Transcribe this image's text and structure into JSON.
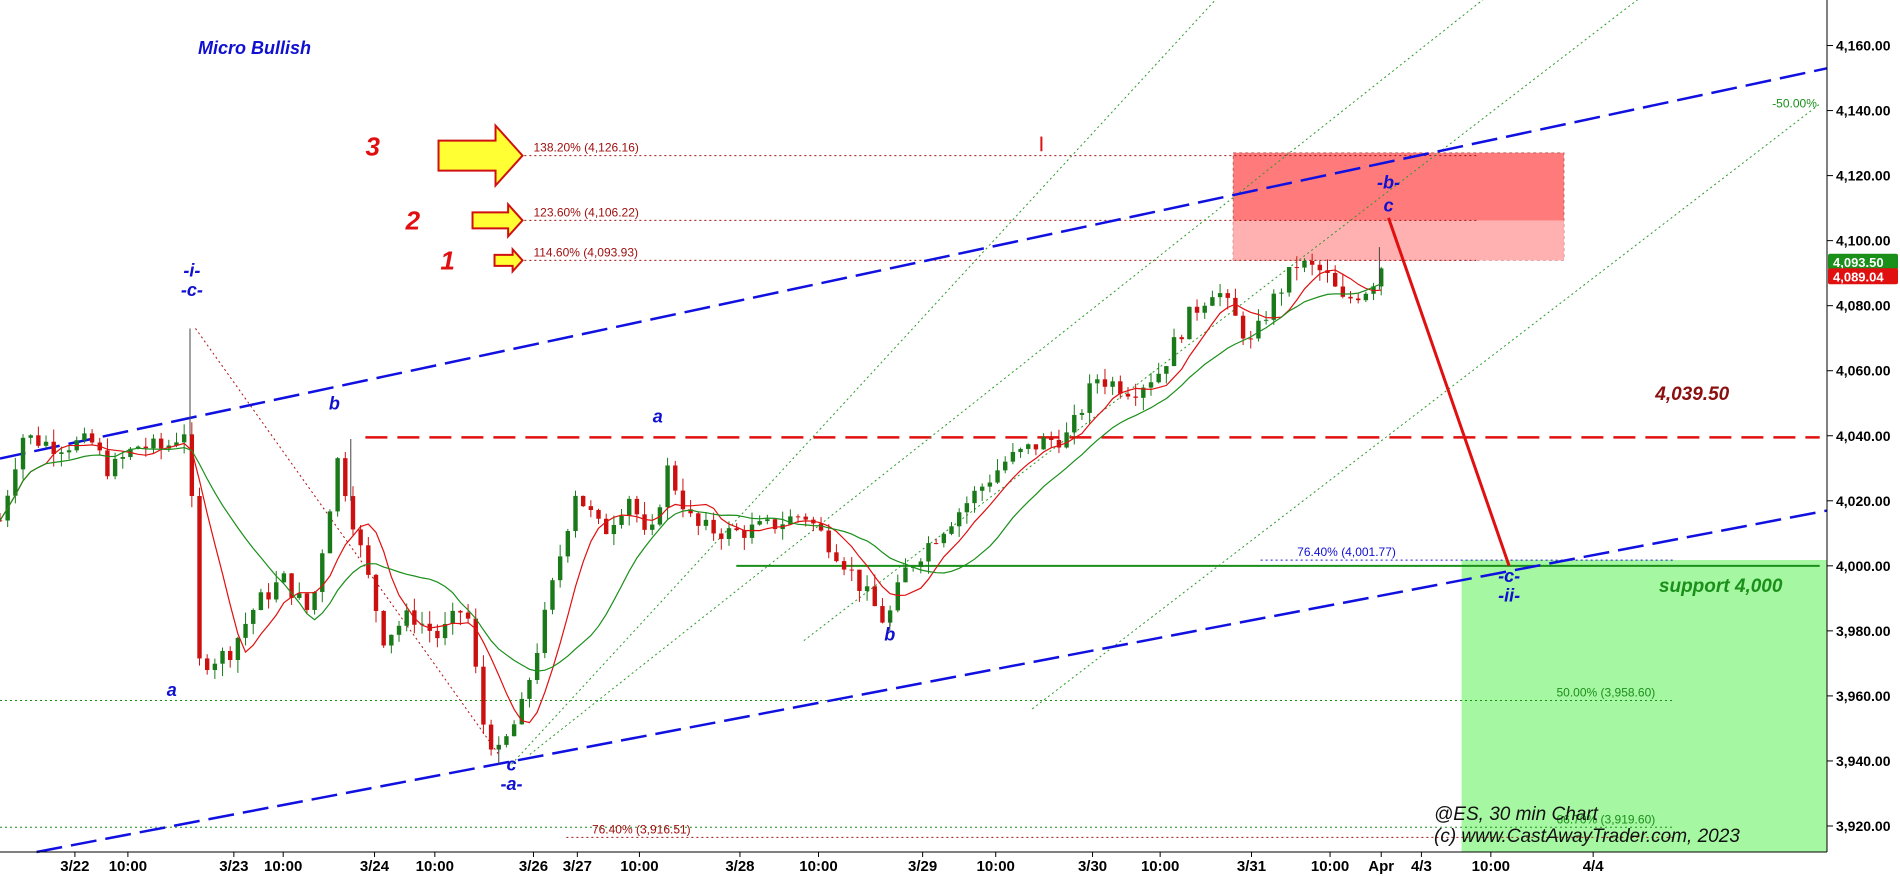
{
  "chart_data": {
    "type": "candlestick",
    "title": "Micro Bullish",
    "watermark": [
      "@ES, 30 min Chart",
      "(c) www.CastAwayTrader.com, 2023"
    ],
    "y_axis": {
      "ylim": [
        3912,
        4174
      ],
      "ticks": [
        "4,160.00",
        "4,140.00",
        "4,120.00",
        "4,100.00",
        "4,080.00",
        "4,060.00",
        "4,040.00",
        "4,020.00",
        "4,000.00",
        "3,980.00",
        "3,960.00",
        "3,940.00",
        "3,920.00"
      ],
      "tick_values": [
        4160,
        4140,
        4120,
        4100,
        4080,
        4060,
        4040,
        4020,
        4000,
        3980,
        3960,
        3940,
        3920
      ]
    },
    "x_axis": {
      "ticks": [
        "3/22",
        "10:00",
        "3/23",
        "10:00",
        "3/24",
        "10:00",
        "3/26",
        "3/27",
        "10:00",
        "3/28",
        "10:00",
        "3/29",
        "10:00",
        "3/30",
        "10:00",
        "3/31",
        "10:00",
        "Apr",
        "4/3",
        "10:00",
        "4/4"
      ],
      "xlim": [
        0,
        100
      ]
    },
    "price_badges": [
      {
        "text": "4,093.50",
        "value": 4093.5,
        "color": "#1a8f1a"
      },
      {
        "text": "4,089.04",
        "value": 4089.04,
        "color": "#e01010"
      }
    ],
    "fib_levels": [
      {
        "label": "138.20% (4,126.16)",
        "value": 4126.16,
        "color": "#a01010"
      },
      {
        "label": "123.60% (4,106.22)",
        "value": 4106.22,
        "color": "#a01010"
      },
      {
        "label": "114.60% (4,093.93)",
        "value": 4093.93,
        "color": "#a01010"
      },
      {
        "label": "76.40% (4,001.77)",
        "value": 4001.77,
        "color": "#1010d0"
      },
      {
        "label": "50.00% (3,958.60)",
        "value": 3958.6,
        "color": "#1a8f1a"
      },
      {
        "label": "66.70% (3,919.60)",
        "value": 3919.6,
        "color": "#1a8f1a"
      },
      {
        "label": "76.40% (3,916.51)",
        "value": 3916.51,
        "color": "#a01010"
      },
      {
        "label": "-50.00%",
        "value": 4141,
        "color": "#1a8f1a"
      }
    ],
    "targets": [
      {
        "number": "1",
        "value": 4093.93
      },
      {
        "number": "2",
        "value": 4106.22
      },
      {
        "number": "3",
        "value": 4126.16
      }
    ],
    "resistance_level": {
      "label": "4,039.50",
      "value": 4039.5
    },
    "support_level": {
      "label": "support 4,000",
      "value": 4000
    },
    "wave_labels": [
      {
        "text": "-i-",
        "x": 10.5,
        "y": 4089
      },
      {
        "text": "-c-",
        "x": 10.5,
        "y": 4083
      },
      {
        "text": "a",
        "x": 9.4,
        "y": 3960
      },
      {
        "text": "b",
        "x": 18.3,
        "y": 4048
      },
      {
        "text": "c",
        "x": 28.0,
        "y": 3937
      },
      {
        "text": "-a-",
        "x": 28.0,
        "y": 3931
      },
      {
        "text": "a",
        "x": 36.0,
        "y": 4044
      },
      {
        "text": "b",
        "x": 48.7,
        "y": 3977
      },
      {
        "text": "-b-",
        "x": 76.0,
        "y": 4116
      },
      {
        "text": "c",
        "x": 76.0,
        "y": 4109
      },
      {
        "text": "-c-",
        "x": 82.6,
        "y": 3995
      },
      {
        "text": "-ii-",
        "x": 82.6,
        "y": 3989
      }
    ],
    "ohlc_anchors": [
      [
        0,
        4014
      ],
      [
        1.2,
        4040
      ],
      [
        3,
        4037
      ],
      [
        5,
        4038
      ],
      [
        6,
        4029
      ],
      [
        7.5,
        4037
      ],
      [
        9,
        4036
      ],
      [
        10.3,
        4043
      ],
      [
        10.9,
        3970
      ],
      [
        12.5,
        3973
      ],
      [
        14,
        3988
      ],
      [
        15.5,
        3996
      ],
      [
        17,
        3985
      ],
      [
        18.5,
        4033
      ],
      [
        19.5,
        4010
      ],
      [
        21,
        3978
      ],
      [
        22.5,
        3985
      ],
      [
        24,
        3978
      ],
      [
        25.5,
        3988
      ],
      [
        26.5,
        3950
      ],
      [
        27.3,
        3942
      ],
      [
        28.5,
        3955
      ],
      [
        30,
        3988
      ],
      [
        31.5,
        4023
      ],
      [
        33,
        4010
      ],
      [
        34.5,
        4022
      ],
      [
        35.5,
        4005
      ],
      [
        36.5,
        4030
      ],
      [
        38,
        4012
      ],
      [
        40,
        4010
      ],
      [
        42,
        4012
      ],
      [
        44,
        4016
      ],
      [
        46,
        4003
      ],
      [
        48.5,
        3982
      ],
      [
        49.5,
        3998
      ],
      [
        51,
        4008
      ],
      [
        53,
        4020
      ],
      [
        55,
        4032
      ],
      [
        57,
        4038
      ],
      [
        58.5,
        4040
      ],
      [
        60,
        4058
      ],
      [
        62,
        4054
      ],
      [
        63.5,
        4060
      ],
      [
        65,
        4076
      ],
      [
        66.5,
        4086
      ],
      [
        67.5,
        4077
      ],
      [
        68.5,
        4068
      ],
      [
        69.5,
        4080
      ],
      [
        71,
        4093
      ],
      [
        72.5,
        4090
      ],
      [
        73.5,
        4081
      ],
      [
        75,
        4086
      ],
      [
        75.7,
        4093.5
      ]
    ],
    "moving_averages": [
      {
        "name": "red",
        "color": "#e01010"
      },
      {
        "name": "green",
        "color": "#1a8f1a"
      }
    ],
    "trend_lines": [
      {
        "style": "blue-dashed",
        "points": [
          [
            0,
            4033
          ],
          [
            100,
            4153
          ]
        ]
      },
      {
        "style": "blue-dashed",
        "points": [
          [
            2,
            3912
          ],
          [
            100,
            4017
          ]
        ]
      }
    ],
    "projection": {
      "from": [
        76.0,
        4107
      ],
      "to": [
        82.6,
        4000
      ],
      "color": "#e01010"
    },
    "zones": [
      {
        "name": "resistance",
        "x": [
          67.5,
          85.6
        ],
        "y": [
          4094,
          4127
        ],
        "color": "#ff7b7b"
      },
      {
        "name": "support",
        "x": [
          80.0,
          100
        ],
        "y": [
          3912,
          4001.8
        ],
        "color": "#a6f7a2"
      }
    ]
  }
}
